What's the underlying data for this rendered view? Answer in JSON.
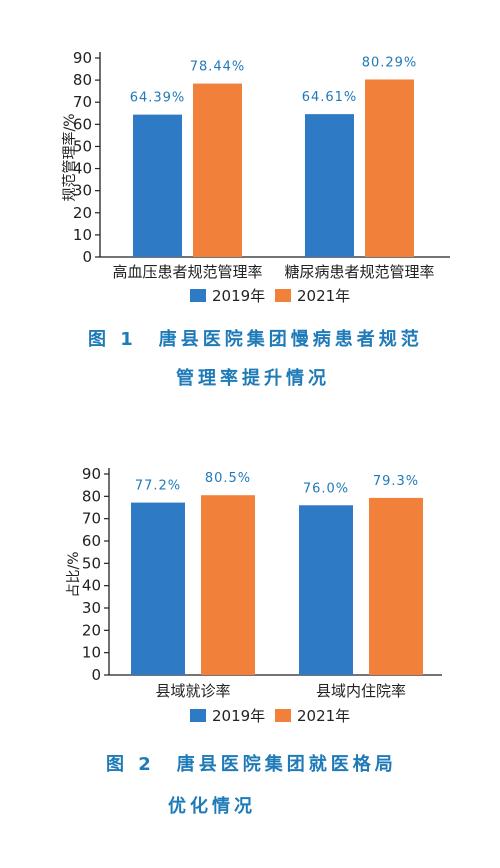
{
  "chart_data": [
    {
      "type": "bar",
      "ylabel": "规范管理率/%",
      "ylim": [
        0,
        90
      ],
      "yticks": [
        "0",
        "10",
        "20",
        "30",
        "40",
        "50",
        "60",
        "70",
        "80",
        "90"
      ],
      "categories": [
        "高血压患者规范管理率",
        "糖尿病患者规范管理率"
      ],
      "series": [
        {
          "name": "2019年",
          "color": "#2e7ac4",
          "values": [
            64.39,
            64.61
          ],
          "labels": [
            "64.39%",
            "64.61%"
          ]
        },
        {
          "name": "2021年",
          "color": "#f0803a",
          "values": [
            78.44,
            80.29
          ],
          "labels": [
            "78.44%",
            "80.29%"
          ]
        }
      ],
      "legend_position": "bottom",
      "grid": false
    },
    {
      "type": "bar",
      "ylabel": "占比/%",
      "ylim": [
        0,
        90
      ],
      "yticks": [
        "0",
        "10",
        "20",
        "30",
        "40",
        "50",
        "60",
        "70",
        "80",
        "90"
      ],
      "categories": [
        "县域就诊率",
        "县域内住院率"
      ],
      "series": [
        {
          "name": "2019年",
          "color": "#2e7ac4",
          "values": [
            77.2,
            76.0
          ],
          "labels": [
            "77.2%",
            "76.0%"
          ]
        },
        {
          "name": "2021年",
          "color": "#f0803a",
          "values": [
            80.5,
            79.3
          ],
          "labels": [
            "80.5%",
            "79.3%"
          ]
        }
      ],
      "legend_position": "bottom",
      "grid": false
    }
  ],
  "captions": {
    "fig1_line1": "图 1　唐县医院集团慢病患者规范",
    "fig1_line2": "管理率提升情况",
    "fig2_line1": "图 2　唐县医院集团就医格局",
    "fig2_line2": "优化情况"
  }
}
